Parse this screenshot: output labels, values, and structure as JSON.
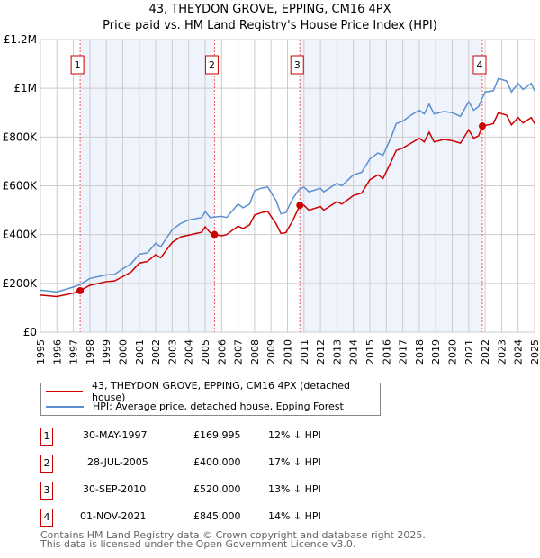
{
  "chart_data": {
    "type": "line",
    "title": "43, THEYDON GROVE, EPPING, CM16 4PX",
    "subtitle": "Price paid vs. HM Land Registry's House Price Index (HPI)",
    "xlim": [
      1995,
      2025
    ],
    "ylim": [
      0,
      1200000
    ],
    "x_ticks": [
      "1995",
      "1996",
      "1997",
      "1998",
      "1999",
      "2000",
      "2001",
      "2002",
      "2003",
      "2004",
      "2005",
      "2006",
      "2007",
      "2008",
      "2009",
      "2010",
      "2011",
      "2012",
      "2013",
      "2014",
      "2015",
      "2016",
      "2017",
      "2018",
      "2019",
      "2020",
      "2021",
      "2022",
      "2023",
      "2024",
      "2025"
    ],
    "y_ticks": [
      {
        "v": 0,
        "label": "£0"
      },
      {
        "v": 200000,
        "label": "£200K"
      },
      {
        "v": 400000,
        "label": "£400K"
      },
      {
        "v": 600000,
        "label": "£600K"
      },
      {
        "v": 800000,
        "label": "£800K"
      },
      {
        "v": 1000000,
        "label": "£1M"
      },
      {
        "v": 1200000,
        "label": "£1.2M"
      }
    ],
    "grid": true,
    "series": [
      {
        "name": "43, THEYDON GROVE, EPPING, CM16 4PX (detached house)",
        "color": "#cc0000",
        "points": [
          [
            1995,
            152000
          ],
          [
            1996,
            146000
          ],
          [
            1997,
            160000
          ],
          [
            1997.41,
            169995
          ],
          [
            1998,
            192000
          ],
          [
            1999,
            207000
          ],
          [
            1999.5,
            210000
          ],
          [
            2000,
            228000
          ],
          [
            2000.5,
            246000
          ],
          [
            2001,
            283000
          ],
          [
            2001.5,
            290000
          ],
          [
            2002,
            318000
          ],
          [
            2002.3,
            305000
          ],
          [
            2003,
            368000
          ],
          [
            2003.5,
            390000
          ],
          [
            2004,
            398000
          ],
          [
            2004.8,
            410000
          ],
          [
            2005,
            432000
          ],
          [
            2005.3,
            408000
          ],
          [
            2005.57,
            400000
          ],
          [
            2006,
            395000
          ],
          [
            2006.3,
            400000
          ],
          [
            2007,
            435000
          ],
          [
            2007.3,
            425000
          ],
          [
            2007.7,
            440000
          ],
          [
            2008,
            480000
          ],
          [
            2008.4,
            490000
          ],
          [
            2008.8,
            495000
          ],
          [
            2009.3,
            445000
          ],
          [
            2009.6,
            405000
          ],
          [
            2009.9,
            408000
          ],
          [
            2010.3,
            455000
          ],
          [
            2010.75,
            520000
          ],
          [
            2011,
            520000
          ],
          [
            2011.3,
            500000
          ],
          [
            2012,
            515000
          ],
          [
            2012.2,
            500000
          ],
          [
            2013,
            535000
          ],
          [
            2013.3,
            525000
          ],
          [
            2014,
            560000
          ],
          [
            2014.5,
            570000
          ],
          [
            2015,
            625000
          ],
          [
            2015.5,
            645000
          ],
          [
            2015.8,
            630000
          ],
          [
            2016.3,
            700000
          ],
          [
            2016.6,
            745000
          ],
          [
            2017,
            755000
          ],
          [
            2017.5,
            775000
          ],
          [
            2018,
            795000
          ],
          [
            2018.3,
            780000
          ],
          [
            2018.6,
            820000
          ],
          [
            2018.9,
            780000
          ],
          [
            2019.5,
            790000
          ],
          [
            2020,
            785000
          ],
          [
            2020.5,
            775000
          ],
          [
            2021,
            830000
          ],
          [
            2021.3,
            795000
          ],
          [
            2021.6,
            805000
          ],
          [
            2021.83,
            845000
          ],
          [
            2022.5,
            855000
          ],
          [
            2022.8,
            900000
          ],
          [
            2023.3,
            890000
          ],
          [
            2023.6,
            850000
          ],
          [
            2024,
            880000
          ],
          [
            2024.3,
            858000
          ],
          [
            2024.8,
            880000
          ],
          [
            2025,
            855000
          ]
        ]
      },
      {
        "name": "HPI: Average price, detached house, Epping Forest",
        "color": "#5b8fd0",
        "points": [
          [
            1995,
            172000
          ],
          [
            1996,
            165000
          ],
          [
            1997,
            185000
          ],
          [
            1997.4,
            195000
          ],
          [
            1998,
            220000
          ],
          [
            1999,
            235000
          ],
          [
            1999.5,
            237000
          ],
          [
            2000,
            260000
          ],
          [
            2000.5,
            280000
          ],
          [
            2001,
            320000
          ],
          [
            2001.5,
            325000
          ],
          [
            2002,
            365000
          ],
          [
            2002.3,
            350000
          ],
          [
            2003,
            420000
          ],
          [
            2003.5,
            445000
          ],
          [
            2004,
            460000
          ],
          [
            2004.8,
            470000
          ],
          [
            2005,
            495000
          ],
          [
            2005.3,
            470000
          ],
          [
            2006,
            475000
          ],
          [
            2006.3,
            470000
          ],
          [
            2007,
            525000
          ],
          [
            2007.3,
            510000
          ],
          [
            2007.7,
            525000
          ],
          [
            2008,
            580000
          ],
          [
            2008.4,
            590000
          ],
          [
            2008.8,
            595000
          ],
          [
            2009.3,
            540000
          ],
          [
            2009.6,
            485000
          ],
          [
            2009.9,
            490000
          ],
          [
            2010.3,
            545000
          ],
          [
            2010.7,
            585000
          ],
          [
            2011,
            595000
          ],
          [
            2011.3,
            575000
          ],
          [
            2012,
            590000
          ],
          [
            2012.2,
            575000
          ],
          [
            2013,
            610000
          ],
          [
            2013.3,
            600000
          ],
          [
            2014,
            645000
          ],
          [
            2014.5,
            655000
          ],
          [
            2015,
            710000
          ],
          [
            2015.5,
            735000
          ],
          [
            2015.8,
            725000
          ],
          [
            2016.3,
            800000
          ],
          [
            2016.6,
            855000
          ],
          [
            2017,
            865000
          ],
          [
            2017.5,
            890000
          ],
          [
            2018,
            910000
          ],
          [
            2018.3,
            895000
          ],
          [
            2018.6,
            935000
          ],
          [
            2018.9,
            895000
          ],
          [
            2019.5,
            905000
          ],
          [
            2020,
            900000
          ],
          [
            2020.5,
            885000
          ],
          [
            2021,
            945000
          ],
          [
            2021.3,
            910000
          ],
          [
            2021.6,
            925000
          ],
          [
            2022,
            985000
          ],
          [
            2022.5,
            990000
          ],
          [
            2022.8,
            1040000
          ],
          [
            2023.3,
            1030000
          ],
          [
            2023.6,
            985000
          ],
          [
            2024,
            1020000
          ],
          [
            2024.3,
            995000
          ],
          [
            2024.8,
            1020000
          ],
          [
            2025,
            990000
          ]
        ]
      }
    ],
    "shaded_ranges": [
      [
        1997.41,
        2005.57
      ],
      [
        2010.75,
        2021.83
      ]
    ],
    "sales": [
      {
        "label": "1",
        "date": "30-MAY-1997",
        "x": 1997.41,
        "price": 169995,
        "price_text": "£169,995",
        "hpi_text": "12% ↓ HPI"
      },
      {
        "label": "2",
        "date": "28-JUL-2005",
        "x": 2005.57,
        "price": 400000,
        "price_text": "£400,000",
        "hpi_text": "17% ↓ HPI"
      },
      {
        "label": "3",
        "date": "30-SEP-2010",
        "x": 2010.75,
        "price": 520000,
        "price_text": "£520,000",
        "hpi_text": "13% ↓ HPI"
      },
      {
        "label": "4",
        "date": "01-NOV-2021",
        "x": 2021.83,
        "price": 845000,
        "price_text": "£845,000",
        "hpi_text": "14% ↓ HPI"
      }
    ],
    "legend_position": "below"
  },
  "footer": {
    "line1": "Contains HM Land Registry data © Crown copyright and database right 2025.",
    "line2": "This data is licensed under the Open Government Licence v3.0."
  }
}
